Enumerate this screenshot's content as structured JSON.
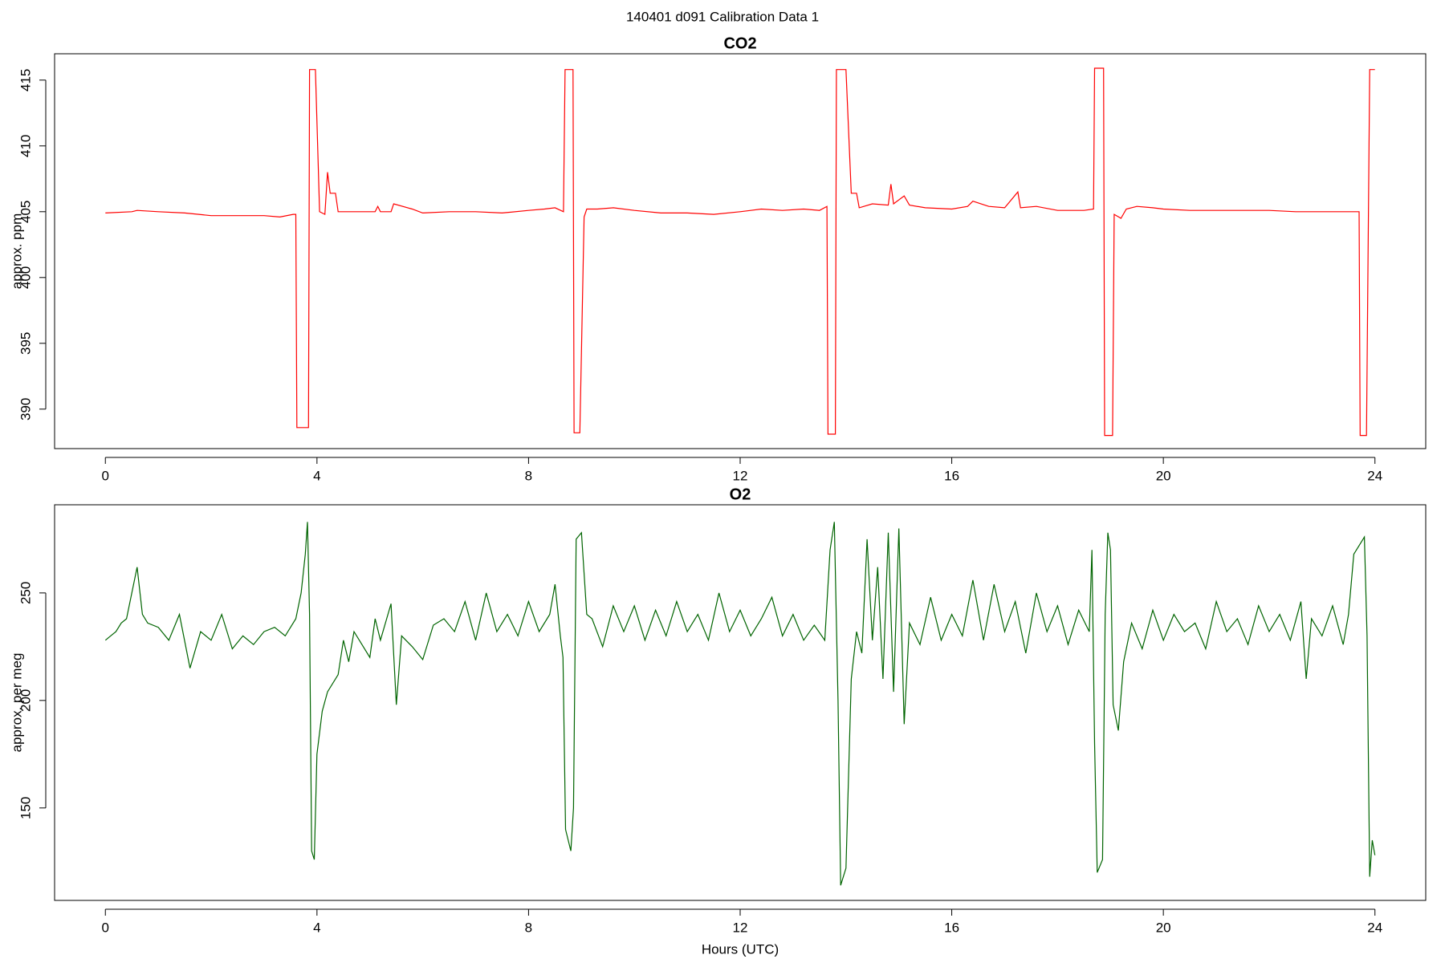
{
  "title": "140401   d091   Calibration Data 1",
  "chart_data": [
    {
      "type": "line",
      "title": "CO2",
      "y_label": "approx. ppm",
      "color": "#ff0000",
      "xlim": [
        -0.96,
        24.96
      ],
      "xticks": [
        0,
        4,
        8,
        12,
        16,
        20,
        24
      ],
      "ylim": [
        387,
        417
      ],
      "yticks": [
        390,
        395,
        400,
        405,
        410,
        415
      ],
      "x": [
        0,
        0.5,
        0.6,
        1,
        1.5,
        2,
        2.5,
        3,
        3.3,
        3.55,
        3.6,
        3.62,
        3.84,
        3.86,
        3.97,
        4.05,
        4.15,
        4.2,
        4.25,
        4.35,
        4.4,
        4.8,
        5.1,
        5.15,
        5.2,
        5.4,
        5.45,
        5.8,
        6,
        6.5,
        7,
        7.5,
        8,
        8.3,
        8.5,
        8.66,
        8.69,
        8.84,
        8.86,
        8.97,
        9.05,
        9.1,
        9.3,
        9.6,
        10,
        10.5,
        11,
        11.5,
        12,
        12.2,
        12.4,
        12.8,
        13.2,
        13.5,
        13.64,
        13.66,
        13.8,
        13.82,
        14.0,
        14.1,
        14.2,
        14.25,
        14.5,
        14.8,
        14.85,
        14.9,
        15.1,
        15.2,
        15.5,
        16,
        16.3,
        16.4,
        16.7,
        17,
        17.25,
        17.3,
        17.6,
        18,
        18.5,
        18.68,
        18.7,
        18.87,
        18.89,
        19.04,
        19.07,
        19.2,
        19.3,
        19.5,
        19.8,
        20,
        20.5,
        21,
        21.5,
        22,
        22.5,
        23,
        23.5,
        23.7,
        23.72,
        23.84,
        23.9,
        24.0
      ],
      "values": [
        404.9,
        405.0,
        405.1,
        405.0,
        404.9,
        404.7,
        404.7,
        404.7,
        404.6,
        404.8,
        404.8,
        388.6,
        388.6,
        415.8,
        415.8,
        405.0,
        404.8,
        408.0,
        406.4,
        406.4,
        405.0,
        405.0,
        405.0,
        405.4,
        405.0,
        405.0,
        405.6,
        405.2,
        404.9,
        405.0,
        405.0,
        404.9,
        405.1,
        405.2,
        405.3,
        405.0,
        415.8,
        415.8,
        388.2,
        388.2,
        404.6,
        405.2,
        405.2,
        405.3,
        405.1,
        404.9,
        404.9,
        404.8,
        405.0,
        405.1,
        405.2,
        405.1,
        405.2,
        405.1,
        405.4,
        388.1,
        388.1,
        415.8,
        415.8,
        406.4,
        406.4,
        405.3,
        405.6,
        405.5,
        407.1,
        405.6,
        406.2,
        405.5,
        405.3,
        405.2,
        405.4,
        405.8,
        405.4,
        405.3,
        406.5,
        405.3,
        405.4,
        405.1,
        405.1,
        405.2,
        415.9,
        415.9,
        388.0,
        388.0,
        404.8,
        404.5,
        405.2,
        405.4,
        405.3,
        405.2,
        405.1,
        405.1,
        405.1,
        405.1,
        405.0,
        405.0,
        405.0,
        405.0,
        388.0,
        388.0,
        415.8,
        415.8
      ]
    },
    {
      "type": "line",
      "title": "O2",
      "y_label": "approx. per meg",
      "x_label": "Hours (UTC)",
      "color": "#006400",
      "xlim": [
        -0.96,
        24.96
      ],
      "xticks": [
        0,
        4,
        8,
        12,
        16,
        20,
        24
      ],
      "ylim": [
        107,
        291
      ],
      "yticks": [
        150,
        200,
        250
      ],
      "x": [
        0,
        0.1,
        0.2,
        0.3,
        0.4,
        0.5,
        0.6,
        0.7,
        0.8,
        1,
        1.2,
        1.4,
        1.6,
        1.8,
        2,
        2.2,
        2.4,
        2.6,
        2.8,
        3,
        3.2,
        3.4,
        3.6,
        3.7,
        3.78,
        3.82,
        3.86,
        3.9,
        3.95,
        4.0,
        4.1,
        4.2,
        4.4,
        4.5,
        4.6,
        4.7,
        4.8,
        5.0,
        5.1,
        5.2,
        5.4,
        5.5,
        5.6,
        5.8,
        6.0,
        6.2,
        6.4,
        6.6,
        6.8,
        7,
        7.2,
        7.4,
        7.6,
        7.8,
        8,
        8.2,
        8.4,
        8.5,
        8.6,
        8.65,
        8.7,
        8.8,
        8.85,
        8.9,
        9.0,
        9.1,
        9.2,
        9.4,
        9.6,
        9.8,
        10,
        10.2,
        10.4,
        10.6,
        10.8,
        11,
        11.2,
        11.4,
        11.6,
        11.8,
        12,
        12.2,
        12.4,
        12.6,
        12.8,
        13,
        13.2,
        13.4,
        13.6,
        13.7,
        13.78,
        13.85,
        13.9,
        14.0,
        14.1,
        14.2,
        14.3,
        14.4,
        14.5,
        14.6,
        14.7,
        14.8,
        14.9,
        15.0,
        15.1,
        15.2,
        15.4,
        15.6,
        15.8,
        16,
        16.2,
        16.4,
        16.6,
        16.8,
        17,
        17.2,
        17.4,
        17.6,
        17.8,
        18,
        18.2,
        18.4,
        18.6,
        18.65,
        18.7,
        18.75,
        18.85,
        18.9,
        18.95,
        19.0,
        19.05,
        19.15,
        19.25,
        19.4,
        19.6,
        19.8,
        20,
        20.2,
        20.4,
        20.6,
        20.8,
        21,
        21.2,
        21.4,
        21.6,
        21.8,
        22,
        22.2,
        22.4,
        22.6,
        22.7,
        22.8,
        23,
        23.2,
        23.4,
        23.5,
        23.6,
        23.8,
        23.85,
        23.9,
        23.95,
        24.0
      ],
      "values": [
        228,
        230,
        232,
        236,
        238,
        250,
        262,
        240,
        236,
        234,
        228,
        240,
        215,
        232,
        228,
        240,
        224,
        230,
        226,
        232,
        234,
        230,
        238,
        250,
        268,
        283,
        240,
        130,
        126,
        175,
        195,
        204,
        212,
        228,
        218,
        232,
        228,
        220,
        238,
        228,
        245,
        198,
        230,
        225,
        219,
        235,
        238,
        232,
        246,
        228,
        250,
        232,
        240,
        230,
        246,
        232,
        240,
        254,
        230,
        220,
        140,
        130,
        150,
        275,
        278,
        240,
        238,
        225,
        244,
        232,
        244,
        228,
        242,
        230,
        246,
        232,
        240,
        228,
        250,
        232,
        242,
        230,
        238,
        248,
        230,
        240,
        228,
        235,
        228,
        270,
        283,
        200,
        114,
        122,
        210,
        232,
        222,
        275,
        228,
        262,
        210,
        278,
        204,
        280,
        189,
        236,
        226,
        248,
        228,
        240,
        230,
        256,
        228,
        254,
        232,
        246,
        222,
        250,
        232,
        244,
        226,
        242,
        232,
        270,
        180,
        120,
        126,
        240,
        278,
        270,
        198,
        186,
        218,
        236,
        224,
        242,
        228,
        240,
        232,
        236,
        224,
        246,
        232,
        238,
        226,
        244,
        232,
        240,
        228,
        246,
        210,
        238,
        230,
        244,
        226,
        240,
        268,
        276,
        230,
        118,
        135,
        128
      ]
    }
  ]
}
